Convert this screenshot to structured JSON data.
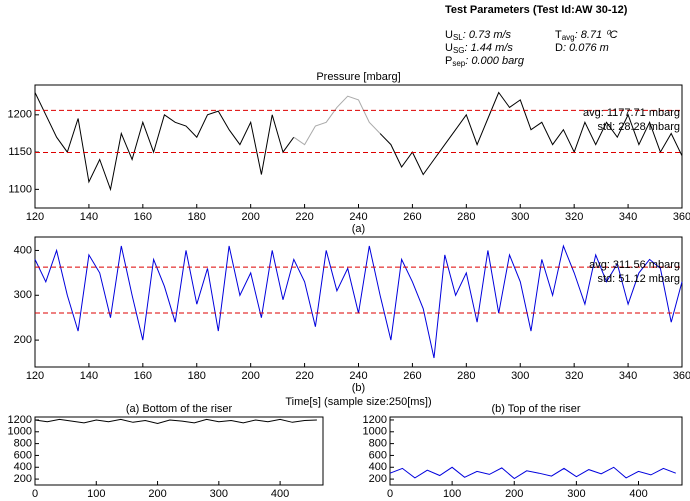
{
  "header": {
    "title": "Test Parameters (Test Id:AW 30-12)",
    "params": [
      {
        "sym": "U",
        "sub": "SL",
        "val": ": 0.73 m/s"
      },
      {
        "sym": "U",
        "sub": "SG",
        "val": ": 1.44 m/s"
      },
      {
        "sym": "P",
        "sub": "sep",
        "val": ": 0.000 barg"
      },
      {
        "sym": "T",
        "sub": "avg",
        "val": ": 8.71 ⁰C"
      },
      {
        "sym": "D",
        "sub": "",
        "val": ": 0.076 m"
      }
    ]
  },
  "chart_data": [
    {
      "type": "line",
      "title": "Pressure [mbarg]",
      "caption": "(a)",
      "x": [
        120,
        124,
        128,
        132,
        136,
        140,
        144,
        148,
        152,
        156,
        160,
        164,
        168,
        172,
        176,
        180,
        184,
        188,
        192,
        196,
        200,
        204,
        208,
        212,
        216,
        220,
        224,
        228,
        232,
        236,
        240,
        244,
        248,
        252,
        256,
        260,
        264,
        268,
        272,
        276,
        280,
        284,
        288,
        292,
        296,
        300,
        304,
        308,
        312,
        316,
        320,
        324,
        328,
        332,
        336,
        340,
        344,
        348,
        352,
        356,
        360
      ],
      "series": [
        {
          "color": "#000000",
          "values": [
            1230,
            1200,
            1170,
            1150,
            1195,
            1110,
            1140,
            1100,
            1175,
            1140,
            1190,
            1150,
            1200,
            1190,
            1185,
            1170,
            1200,
            1205,
            1180,
            1160,
            1190,
            1120,
            1200,
            1150,
            1170,
            null,
            null,
            null,
            null,
            null,
            null,
            null,
            1175,
            1160,
            1130,
            1150,
            1120,
            1140,
            1160,
            1180,
            1200,
            1160,
            1195,
            1230,
            1210,
            1220,
            1180,
            1190,
            1160,
            1180,
            1150,
            1190,
            1160,
            1190,
            1170,
            1200,
            1160,
            1190,
            1150,
            1175,
            1145
          ]
        },
        {
          "color": "#aaaaaa",
          "values": [
            null,
            null,
            null,
            null,
            null,
            null,
            null,
            null,
            null,
            null,
            null,
            null,
            null,
            null,
            null,
            null,
            null,
            null,
            null,
            null,
            null,
            null,
            null,
            null,
            1170,
            1160,
            1185,
            1190,
            1210,
            1225,
            1220,
            1190,
            1175,
            null,
            null,
            null,
            null,
            null,
            null,
            null,
            null,
            null,
            null,
            null,
            null,
            null,
            null,
            null,
            null,
            null,
            null,
            null,
            null,
            null,
            null,
            null,
            null,
            null,
            null,
            null,
            null
          ]
        }
      ],
      "ref_lines": [
        1205.99,
        1149.43
      ],
      "ref_color": "#dd0000",
      "annotations": [
        "avg: 1177.71 mbarg",
        "std: 28.28 mbarg"
      ],
      "xlim": [
        120,
        360
      ],
      "xticks": [
        120,
        140,
        160,
        180,
        200,
        220,
        240,
        260,
        280,
        300,
        320,
        340,
        360
      ],
      "ylim": [
        1075,
        1240
      ],
      "yticks": [
        1100,
        1150,
        1200
      ]
    },
    {
      "type": "line",
      "caption": "(b)",
      "xlabel": "Time[s] (sample size:250[ms])",
      "x": [
        120,
        124,
        128,
        132,
        136,
        140,
        144,
        148,
        152,
        156,
        160,
        164,
        168,
        172,
        176,
        180,
        184,
        188,
        192,
        196,
        200,
        204,
        208,
        212,
        216,
        220,
        224,
        228,
        232,
        236,
        240,
        244,
        248,
        252,
        256,
        260,
        264,
        268,
        272,
        276,
        280,
        284,
        288,
        292,
        296,
        300,
        304,
        308,
        312,
        316,
        320,
        324,
        328,
        332,
        336,
        340,
        344,
        348,
        352,
        356,
        360
      ],
      "series": [
        {
          "color": "#0000dd",
          "values": [
            380,
            330,
            400,
            300,
            220,
            390,
            350,
            250,
            410,
            300,
            200,
            380,
            320,
            240,
            400,
            280,
            360,
            220,
            410,
            300,
            350,
            250,
            400,
            290,
            380,
            330,
            230,
            400,
            310,
            360,
            260,
            410,
            300,
            200,
            380,
            330,
            270,
            160,
            390,
            300,
            350,
            240,
            400,
            260,
            390,
            330,
            220,
            380,
            300,
            410,
            350,
            280,
            390,
            330,
            370,
            280,
            350,
            380,
            360,
            240,
            330
          ]
        }
      ],
      "ref_lines": [
        362.68,
        260.44
      ],
      "ref_color": "#dd0000",
      "annotations": [
        "avg: 311.56 mbarg",
        "std: 51.12 mbarg"
      ],
      "xlim": [
        120,
        360
      ],
      "xticks": [
        120,
        140,
        160,
        180,
        200,
        220,
        240,
        260,
        280,
        300,
        320,
        340,
        360
      ],
      "ylim": [
        140,
        430
      ],
      "yticks": [
        200,
        300,
        400
      ]
    },
    {
      "type": "line",
      "title": "(a) Bottom of the riser",
      "x": [
        0,
        20,
        40,
        60,
        80,
        100,
        120,
        140,
        160,
        180,
        200,
        220,
        240,
        260,
        280,
        300,
        320,
        340,
        360,
        380,
        400,
        420,
        440,
        460
      ],
      "series": [
        {
          "color": "#000000",
          "values": [
            1200,
            1170,
            1210,
            1180,
            1150,
            1200,
            1170,
            1210,
            1160,
            1190,
            1140,
            1200,
            1180,
            1150,
            1210,
            1170,
            1190,
            1150,
            1200,
            1170,
            1210,
            1160,
            1190,
            1200
          ]
        }
      ],
      "xlim": [
        0,
        470
      ],
      "xticks": [
        0,
        100,
        200,
        300,
        400
      ],
      "ylim": [
        100,
        1250
      ],
      "yticks": [
        200,
        400,
        600,
        800,
        1000,
        1200
      ]
    },
    {
      "type": "line",
      "title": "(b) Top of the riser",
      "x": [
        0,
        20,
        40,
        60,
        80,
        100,
        120,
        140,
        160,
        180,
        200,
        220,
        240,
        260,
        280,
        300,
        320,
        340,
        360,
        380,
        400,
        420,
        440,
        460
      ],
      "series": [
        {
          "color": "#0000dd",
          "values": [
            300,
            380,
            220,
            350,
            260,
            400,
            230,
            330,
            280,
            390,
            210,
            340,
            300,
            250,
            380,
            240,
            360,
            290,
            400,
            220,
            330,
            270,
            380,
            300
          ]
        }
      ],
      "xlim": [
        0,
        470
      ],
      "xticks": [
        0,
        100,
        200,
        300,
        400
      ],
      "ylim": [
        100,
        1250
      ],
      "yticks": [
        200,
        400,
        600,
        800,
        1000,
        1200
      ]
    }
  ]
}
